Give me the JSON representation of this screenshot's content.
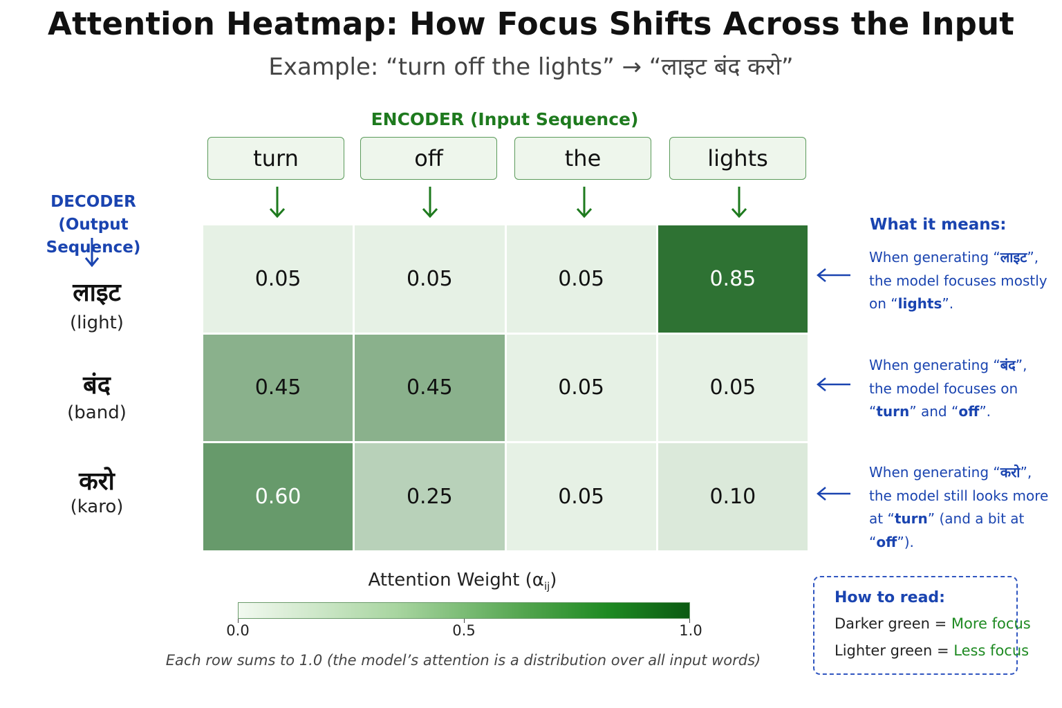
{
  "title": "Attention Heatmap: How Focus Shifts Across the Input",
  "subtitle": "Example: “turn off the lights”  → “लाइट बंद करो”",
  "chart_data": {
    "type": "heatmap",
    "xlabel": "ENCODER (Input Sequence)",
    "ylabel_line1": "DECODER",
    "ylabel_line2": "(Output Sequence)",
    "x": [
      "turn",
      "off",
      "the",
      "lights"
    ],
    "y": [
      {
        "word": "लाइट",
        "roman": "(light)"
      },
      {
        "word": "बंद",
        "roman": "(band)"
      },
      {
        "word": "करो",
        "roman": "(karo)"
      }
    ],
    "values": [
      [
        0.05,
        0.05,
        0.05,
        0.85
      ],
      [
        0.45,
        0.45,
        0.05,
        0.05
      ],
      [
        0.6,
        0.25,
        0.05,
        0.1
      ]
    ],
    "value_labels": [
      [
        "0.05",
        "0.05",
        "0.05",
        "0.85"
      ],
      [
        "0.45",
        "0.45",
        "0.05",
        "0.05"
      ],
      [
        "0.60",
        "0.25",
        "0.05",
        "0.10"
      ]
    ],
    "colorbar": {
      "label": "Attention Weight (α",
      "label_sub": "ij",
      "label_end": ")",
      "range": [
        0.0,
        1.0
      ],
      "ticks": [
        "0.0",
        "0.5",
        "1.0"
      ],
      "colors": [
        "#f2f9f0",
        "#0b5a12"
      ]
    }
  },
  "explanations": {
    "title": "What it means:",
    "rows": [
      {
        "l1_pre": "When generating “",
        "l1_word": "लाइट",
        "l1_post": "”,",
        "l2": "the model focuses mostly",
        "l3_pre": "on “",
        "l3_bold": "lights",
        "l3_post": "”."
      },
      {
        "l1_pre": "When generating “",
        "l1_word": "बंद",
        "l1_post": "”,",
        "l2": "the model focuses on",
        "l3_pre": "“",
        "l3_bold": "turn",
        "l3_mid": "” and “",
        "l3_bold2": "off",
        "l3_post": "”."
      },
      {
        "l1_pre": "When generating “",
        "l1_word": "करो",
        "l1_post": "”,",
        "l2": "the model still looks more",
        "l3_pre": "at “",
        "l3_bold": "turn",
        "l3_mid": "” (and a bit at “",
        "l3_bold2": "off",
        "l3_post": "”)."
      }
    ]
  },
  "footnote": "Each row sums to 1.0 (the model’s attention is a distribution over all input words)",
  "legend": {
    "title": "How to read:",
    "dark_prefix": "Darker green = ",
    "dark_value": "More focus",
    "light_prefix": "Lighter green = ",
    "light_value": "Less focus"
  },
  "colors": {
    "accent_green": "#1e7a1e",
    "accent_blue": "#1a44b0"
  }
}
